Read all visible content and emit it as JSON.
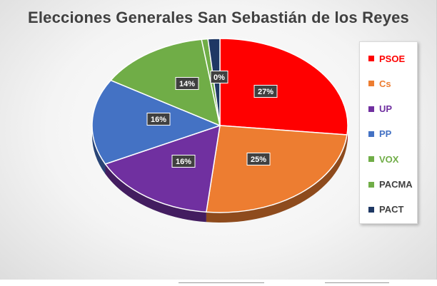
{
  "chart_data": {
    "type": "pie",
    "title": "Elecciones Generales San Sebastián de los Reyes",
    "categories": [
      "PSOE",
      "Cs",
      "UP",
      "PP",
      "VOX",
      "PACMA",
      "PACT"
    ],
    "values": [
      27,
      25,
      16,
      16,
      14,
      0,
      0
    ],
    "data_labels": [
      "27%",
      "25%",
      "16%",
      "16%",
      "14%",
      "0%",
      ""
    ],
    "colors": [
      "#ff0000",
      "#ed7d31",
      "#7030a0",
      "#4472c4",
      "#70ad47",
      "#70ad47",
      "#1f3864"
    ],
    "legend_position": "right",
    "style": "3d"
  }
}
